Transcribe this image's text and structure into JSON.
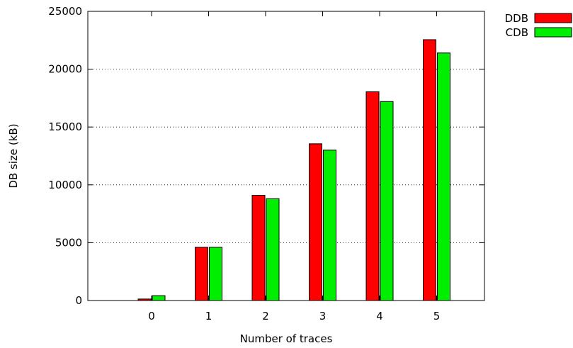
{
  "chart_data": {
    "type": "bar",
    "title": "",
    "xlabel": "Number of traces",
    "ylabel": "DB size (kB)",
    "categories": [
      "0",
      "1",
      "2",
      "3",
      "4",
      "5"
    ],
    "series": [
      {
        "name": "DDB",
        "color": "#ff0000",
        "values": [
          130,
          4600,
          9100,
          13550,
          18050,
          22550
        ]
      },
      {
        "name": "CDB",
        "color": "#00ee00",
        "values": [
          420,
          4600,
          8800,
          13000,
          17200,
          21400
        ]
      }
    ],
    "ylim": [
      0,
      25000
    ],
    "yticks": [
      "0",
      "5000",
      "10000",
      "15000",
      "20000",
      "25000"
    ],
    "grid": "horizontal dotted",
    "legend_position": "outside top-right"
  }
}
